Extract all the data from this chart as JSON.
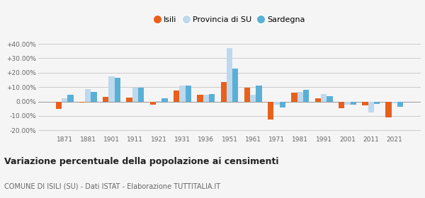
{
  "years": [
    1871,
    1881,
    1901,
    1911,
    1921,
    1931,
    1936,
    1951,
    1961,
    1971,
    1981,
    1991,
    2001,
    2011,
    2021
  ],
  "isili": [
    -5.0,
    -0.8,
    3.0,
    2.5,
    -2.0,
    7.5,
    4.5,
    13.5,
    9.5,
    -12.5,
    6.0,
    2.0,
    -4.5,
    -2.5,
    -11.0
  ],
  "provincia": [
    2.0,
    8.5,
    17.5,
    9.5,
    0.5,
    11.0,
    4.5,
    37.0,
    4.5,
    -2.0,
    6.5,
    5.0,
    -2.0,
    -7.5,
    -1.0
  ],
  "sardegna": [
    4.5,
    6.5,
    16.5,
    9.5,
    2.0,
    11.0,
    5.0,
    23.0,
    11.0,
    -4.0,
    8.0,
    3.5,
    -2.0,
    -1.5,
    -3.5
  ],
  "isili_color": "#e8601c",
  "provincia_color": "#bdd9ed",
  "sardegna_color": "#5bafd6",
  "title": "Variazione percentuale della popolazione ai censimenti",
  "subtitle": "COMUNE DI ISILI (SU) - Dati ISTAT - Elaborazione TUTTITALIA.IT",
  "ytick_values": [
    -20,
    -10,
    0,
    10,
    20,
    30,
    40
  ],
  "ylim": [
    -23,
    43
  ],
  "background_color": "#f5f5f5",
  "plot_bg_color": "#f5f5f5",
  "grid_color": "#cccccc",
  "bar_width": 0.25,
  "legend_labels": [
    "Isili",
    "Provincia di SU",
    "Sardegna"
  ]
}
